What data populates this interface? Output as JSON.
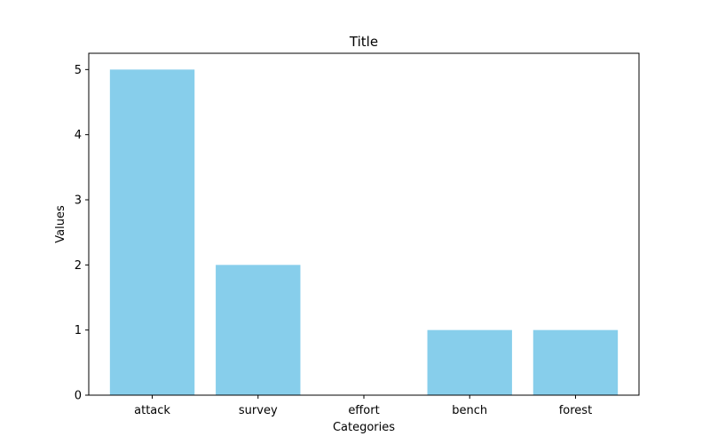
{
  "chart_data": {
    "type": "bar",
    "title": "Title",
    "xlabel": "Categories",
    "ylabel": "Values",
    "categories": [
      "attack",
      "survey",
      "effort",
      "bench",
      "forest"
    ],
    "values": [
      5,
      2,
      0,
      1,
      1
    ],
    "ylim": [
      0,
      5.25
    ],
    "yticks": [
      0,
      1,
      2,
      3,
      4,
      5
    ],
    "grid": false,
    "bar_color": "#87ceeb"
  }
}
